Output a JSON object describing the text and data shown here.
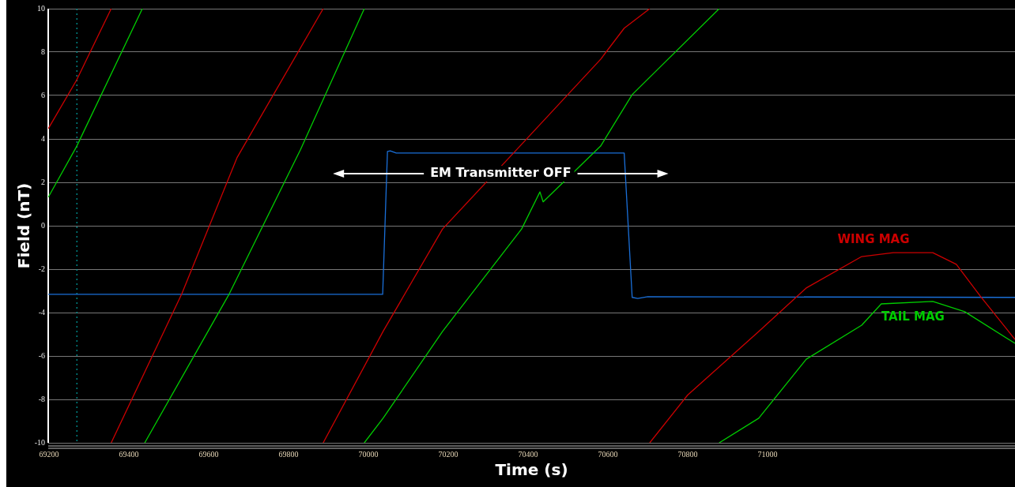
{
  "chart_data": {
    "type": "line",
    "xlabel": "Time (s)",
    "ylabel": "Field (nT)",
    "xlim": [
      69198.2,
      71620
    ],
    "xticks": [
      69200,
      69400,
      69600,
      69800,
      70000,
      70200,
      70400,
      70600,
      70800,
      71000
    ],
    "ylim": [
      -10,
      10
    ],
    "yticks": [
      -10,
      -8,
      -6,
      -4,
      -2,
      0,
      2,
      4,
      6,
      8,
      10
    ],
    "grid": "y",
    "legend": false,
    "marker": "none",
    "line_style": "solid",
    "series": [
      {
        "name": "WING MAG",
        "color": "#cc0000",
        "x": [
          69198.2,
          69269,
          69356,
          null,
          69356,
          69533,
          69671,
          69887,
          null,
          69887,
          70037,
          70186,
          70384,
          70582,
          70641,
          70705,
          null,
          70705,
          70800,
          70978,
          71097,
          71236,
          71315,
          71414,
          71473,
          71533,
          71620
        ],
        "values": [
          4.47,
          6.7,
          10,
          null,
          -10,
          -3.13,
          3.13,
          10,
          null,
          -10,
          -4.87,
          -0.15,
          3.75,
          7.67,
          9.1,
          10,
          null,
          -10,
          -7.8,
          -4.87,
          -2.87,
          -1.42,
          -1.24,
          -1.24,
          -1.78,
          -3.24,
          -5.24
        ]
      },
      {
        "name": "TAIL MAG",
        "color": "#00cc00",
        "x": [
          69198.2,
          69269,
          69434,
          null,
          69440,
          69652,
          69830,
          69990,
          null,
          69990,
          70037,
          70186,
          70384,
          70430,
          70438,
          70582,
          70661,
          70879,
          null,
          70879,
          70978,
          71097,
          71236,
          71285,
          71414,
          71494,
          71620
        ],
        "values": [
          1.31,
          3.64,
          10,
          null,
          -10,
          -3.13,
          3.5,
          10,
          null,
          -10,
          -8.87,
          -4.87,
          -0.15,
          1.56,
          1.1,
          3.67,
          6.04,
          10,
          null,
          -10,
          -8.87,
          -6.15,
          -4.58,
          -3.6,
          -3.49,
          -3.96,
          -5.42
        ]
      },
      {
        "color": "#1a6fd8",
        "x": [
          69198.2,
          70036,
          70048,
          70055,
          70070,
          70641,
          70661,
          70675,
          70700,
          71620
        ],
        "values": [
          -3.16,
          -3.16,
          3.42,
          3.45,
          3.35,
          3.35,
          -3.3,
          -3.35,
          -3.27,
          -3.3
        ]
      }
    ],
    "ref_lines": [
      {
        "axis": "x",
        "value": 69270,
        "color": "#00a0a0",
        "line_style": "dotted"
      }
    ],
    "annotations": [
      "EM Transmitter OFF"
    ]
  }
}
